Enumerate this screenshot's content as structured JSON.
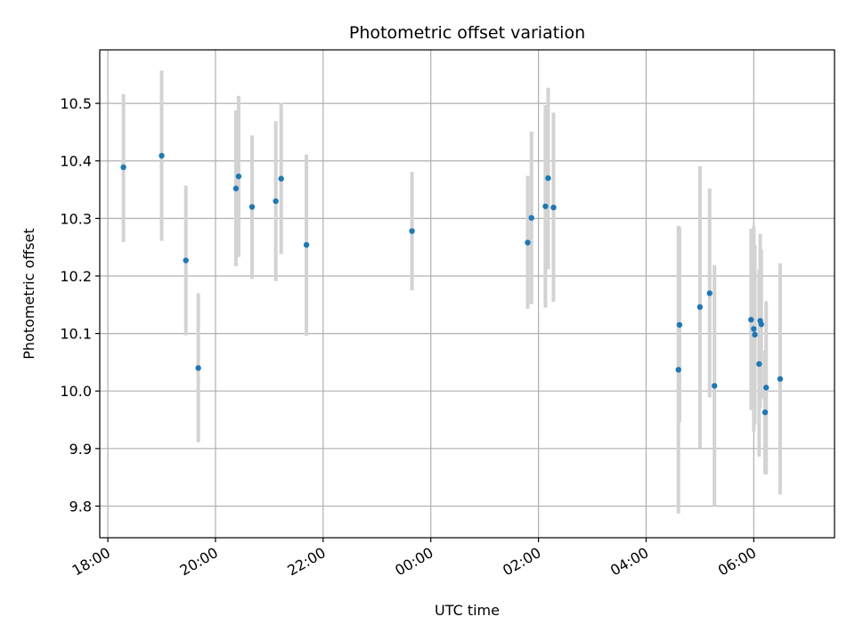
{
  "chart_data": {
    "type": "scatter",
    "title": "Photometric offset variation",
    "xlabel": "UTC time",
    "ylabel": "Photometric offset",
    "x_axis": {
      "type": "time",
      "min_hours": -6.15,
      "max_hours": 7.5,
      "ticks_hours": [
        -6,
        -4,
        -2,
        0,
        2,
        4,
        6
      ],
      "tick_labels": [
        "18:00",
        "20:00",
        "22:00",
        "00:00",
        "02:00",
        "04:00",
        "06:00"
      ]
    },
    "y_axis": {
      "min": 9.745,
      "max": 10.593,
      "ticks": [
        9.8,
        9.9,
        10.0,
        10.1,
        10.2,
        10.3,
        10.4,
        10.5
      ],
      "tick_labels": [
        "9.8",
        "9.9",
        "10.0",
        "10.1",
        "10.2",
        "10.3",
        "10.4",
        "10.5"
      ]
    },
    "grid": true,
    "colors": {
      "marker": "#1f77b4",
      "errorbar": "#d3d3d3",
      "grid": "#b0b0b0"
    },
    "points": [
      {
        "x": -5.71,
        "y": 10.389,
        "lo": 10.259,
        "hi": 10.516
      },
      {
        "x": -5.0,
        "y": 10.409,
        "lo": 10.261,
        "hi": 10.557
      },
      {
        "x": -4.55,
        "y": 10.227,
        "lo": 10.097,
        "hi": 10.357
      },
      {
        "x": -4.32,
        "y": 10.04,
        "lo": 9.911,
        "hi": 10.17
      },
      {
        "x": -3.62,
        "y": 10.352,
        "lo": 10.217,
        "hi": 10.488
      },
      {
        "x": -3.57,
        "y": 10.373,
        "lo": 10.233,
        "hi": 10.513
      },
      {
        "x": -3.32,
        "y": 10.32,
        "lo": 10.195,
        "hi": 10.444
      },
      {
        "x": -2.88,
        "y": 10.33,
        "lo": 10.191,
        "hi": 10.469
      },
      {
        "x": -2.78,
        "y": 10.369,
        "lo": 10.238,
        "hi": 10.501
      },
      {
        "x": -2.31,
        "y": 10.254,
        "lo": 10.096,
        "hi": 10.411
      },
      {
        "x": -0.35,
        "y": 10.278,
        "lo": 10.175,
        "hi": 10.381
      },
      {
        "x": 1.8,
        "y": 10.258,
        "lo": 10.143,
        "hi": 10.374
      },
      {
        "x": 1.87,
        "y": 10.301,
        "lo": 10.151,
        "hi": 10.451
      },
      {
        "x": 2.13,
        "y": 10.321,
        "lo": 10.145,
        "hi": 10.497
      },
      {
        "x": 2.18,
        "y": 10.37,
        "lo": 10.212,
        "hi": 10.527
      },
      {
        "x": 2.28,
        "y": 10.319,
        "lo": 10.155,
        "hi": 10.484
      },
      {
        "x": 4.6,
        "y": 10.037,
        "lo": 9.787,
        "hi": 10.287
      },
      {
        "x": 4.62,
        "y": 10.115,
        "lo": 9.946,
        "hi": 10.284
      },
      {
        "x": 5.0,
        "y": 10.146,
        "lo": 9.901,
        "hi": 10.391
      },
      {
        "x": 5.18,
        "y": 10.17,
        "lo": 9.989,
        "hi": 10.352
      },
      {
        "x": 5.27,
        "y": 10.009,
        "lo": 9.8,
        "hi": 10.219
      },
      {
        "x": 5.95,
        "y": 10.124,
        "lo": 9.967,
        "hi": 10.282
      },
      {
        "x": 6.0,
        "y": 10.108,
        "lo": 9.929,
        "hi": 10.287
      },
      {
        "x": 6.02,
        "y": 10.098,
        "lo": 9.942,
        "hi": 10.254
      },
      {
        "x": 6.1,
        "y": 10.047,
        "lo": 9.886,
        "hi": 10.212
      },
      {
        "x": 6.12,
        "y": 10.122,
        "lo": 9.97,
        "hi": 10.273
      },
      {
        "x": 6.14,
        "y": 10.116,
        "lo": 9.986,
        "hi": 10.246
      },
      {
        "x": 6.21,
        "y": 9.963,
        "lo": 9.855,
        "hi": 10.07
      },
      {
        "x": 6.23,
        "y": 10.006,
        "lo": 9.855,
        "hi": 10.156
      },
      {
        "x": 6.49,
        "y": 10.021,
        "lo": 9.82,
        "hi": 10.222
      }
    ]
  }
}
